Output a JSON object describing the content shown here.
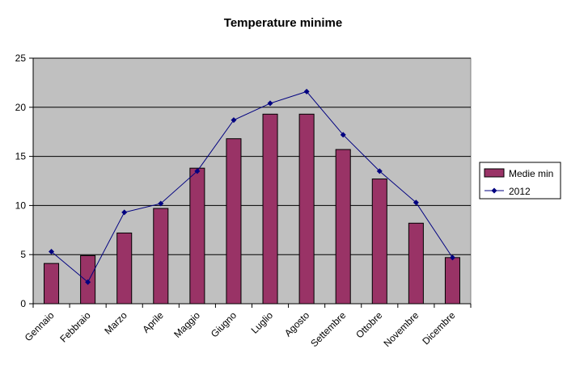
{
  "chart_data": {
    "type": "bar",
    "title": "Temperature minime",
    "categories": [
      "Gennaio",
      "Febbraio",
      "Marzo",
      "Aprile",
      "Maggio",
      "Giugno",
      "Luglio",
      "Agosto",
      "Settembre",
      "Ottobre",
      "Novembre",
      "Dicembre"
    ],
    "series": [
      {
        "name": "Medie min",
        "type": "bar",
        "color": "#993366",
        "values": [
          4.1,
          4.9,
          7.2,
          9.7,
          13.8,
          16.8,
          19.3,
          19.3,
          15.7,
          12.7,
          8.2,
          4.7
        ]
      },
      {
        "name": "2012",
        "type": "line",
        "color": "#000080",
        "values": [
          5.3,
          2.2,
          9.3,
          10.2,
          13.5,
          18.7,
          20.4,
          21.6,
          17.2,
          13.5,
          10.3,
          4.7
        ]
      }
    ],
    "ylim": [
      0,
      25
    ],
    "yticks": [
      0,
      5,
      10,
      15,
      20,
      25
    ],
    "xlabel": "",
    "ylabel": "",
    "grid": true,
    "legend": "right",
    "plot_background": "#c0c0c0"
  }
}
